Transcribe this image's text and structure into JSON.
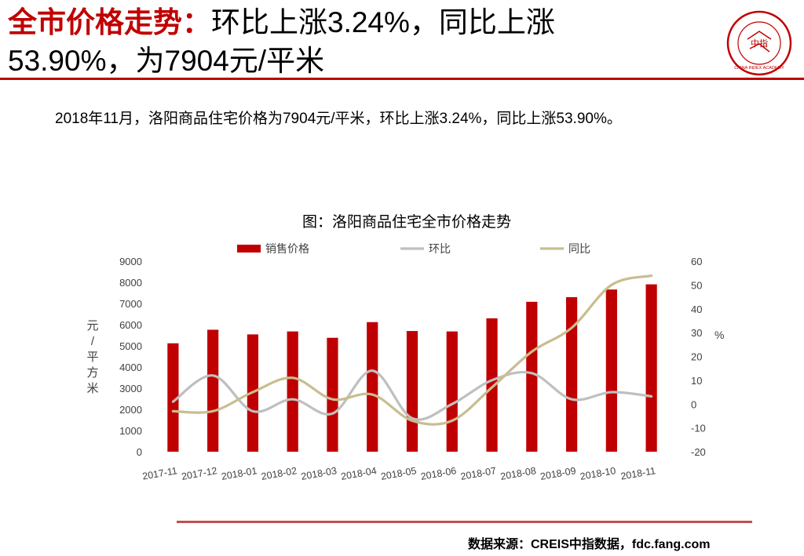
{
  "header": {
    "title_accent": "全市价格走势：",
    "title_rest": "环比上涨3.24%，同比上涨53.90%，为7904元/平米"
  },
  "logo": {
    "text": "中指",
    "ring_text": "CHINA INDEX ACADEMY",
    "color": "#c00000"
  },
  "summary": "2018年11月，洛阳商品住宅价格为7904元/平米，环比上涨3.24%，同比上涨53.90%。",
  "chart_data": {
    "type": "bar",
    "title": "图：洛阳商品住宅全市价格走势",
    "categories": [
      "2017-11",
      "2017-12",
      "2018-01",
      "2018-02",
      "2018-03",
      "2018-04",
      "2018-05",
      "2018-06",
      "2018-07",
      "2018-08",
      "2018-09",
      "2018-10",
      "2018-11"
    ],
    "series": [
      {
        "name": "销售价格",
        "type": "bar",
        "axis": "left",
        "color": "#c00000",
        "values": [
          5120,
          5760,
          5540,
          5680,
          5380,
          6120,
          5700,
          5680,
          6300,
          7080,
          7300,
          7660,
          7904
        ]
      },
      {
        "name": "环比",
        "type": "line",
        "axis": "right",
        "color": "#bfbfbf",
        "values": [
          1,
          12,
          -3,
          2,
          -4,
          14,
          -6,
          0,
          10,
          13,
          2,
          5,
          3.24
        ]
      },
      {
        "name": "同比",
        "type": "line",
        "axis": "right",
        "color": "#c9bd8f",
        "values": [
          -3,
          -3,
          5,
          11,
          2,
          4,
          -7,
          -7,
          7,
          22,
          32,
          50,
          53.9
        ]
      }
    ],
    "ylabel": "元/平方米",
    "ylim": [
      0,
      9000
    ],
    "yticks": [
      "0",
      "1000",
      "2000",
      "3000",
      "4000",
      "5000",
      "6000",
      "7000",
      "8000",
      "9000"
    ],
    "y2label": "%",
    "y2lim": [
      -20,
      60
    ],
    "y2ticks": [
      "-20",
      "-10",
      "0",
      "10",
      "20",
      "30",
      "40",
      "50",
      "60"
    ],
    "legend_position": "top",
    "grid": false
  },
  "source": "数据来源：CREIS中指数据，fdc.fang.com"
}
